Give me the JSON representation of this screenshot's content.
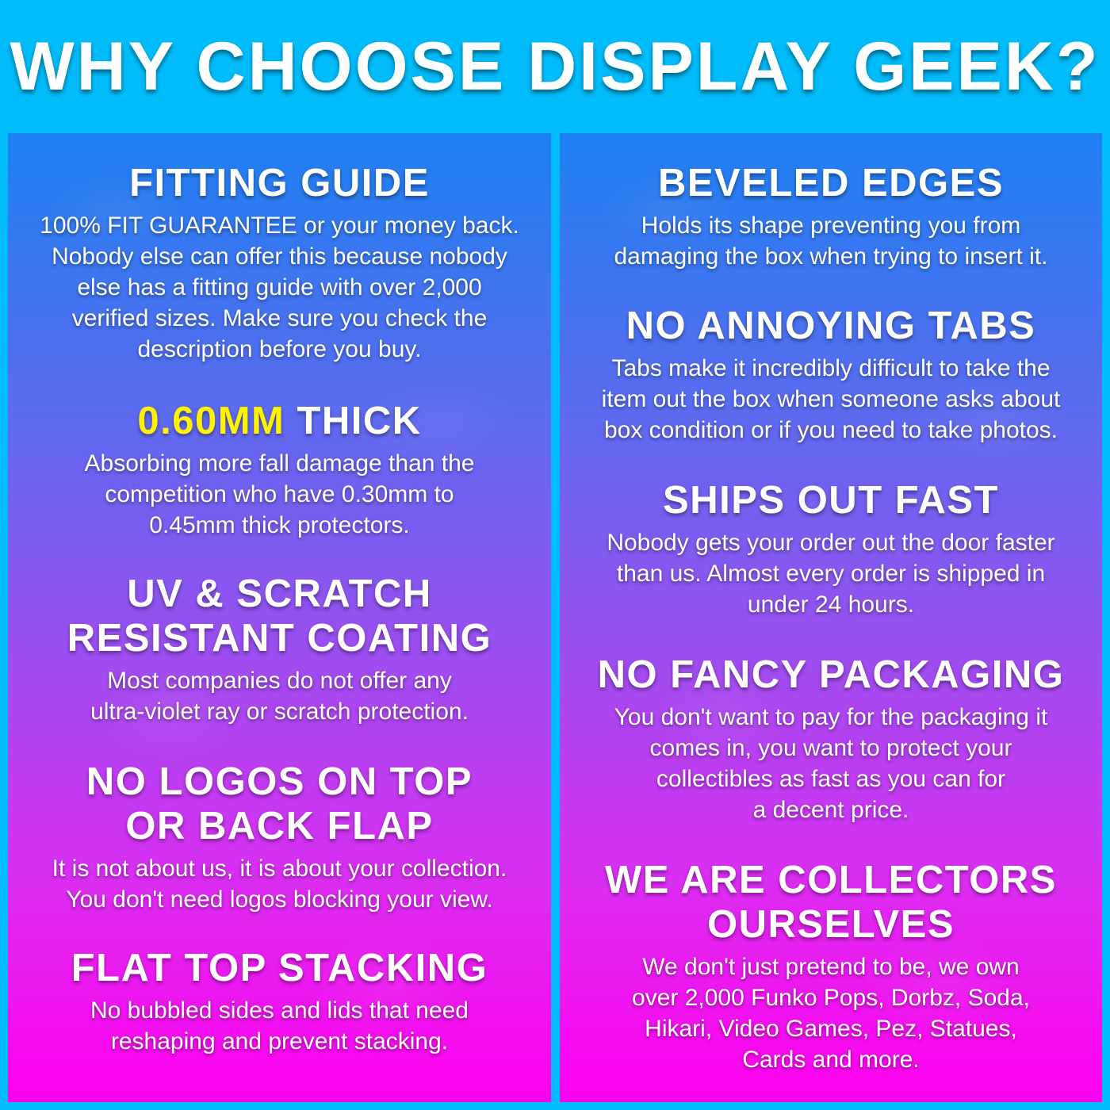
{
  "title": "WHY CHOOSE DISPLAY GEEK?",
  "colors": {
    "background": "#00bcfb",
    "gradient_top": "#1d80f2",
    "gradient_bottom": "#ff00ee",
    "highlight": "#fff200"
  },
  "left": [
    {
      "heading": [
        "FITTING GUIDE"
      ],
      "body": [
        "100% FIT GUARANTEE or your money back.",
        "Nobody else can offer this because nobody",
        "else has a fitting guide with over 2,000",
        "verified sizes. Make sure you check the",
        "description before you buy."
      ]
    },
    {
      "heading_highlight": "0.60MM",
      "heading": [
        " THICK"
      ],
      "body": [
        "Absorbing more fall damage than the",
        "competition who have 0.30mm to",
        "0.45mm thick protectors."
      ]
    },
    {
      "heading": [
        "UV & SCRATCH",
        "RESISTANT COATING"
      ],
      "body": [
        "Most companies do not offer any",
        "ultra-violet ray or scratch protection."
      ]
    },
    {
      "heading": [
        "NO LOGOS ON TOP",
        "OR BACK FLAP"
      ],
      "body": [
        "It is not about us, it is about your collection.",
        "You don't need logos blocking your view."
      ]
    },
    {
      "heading": [
        "FLAT TOP STACKING"
      ],
      "body": [
        "No bubbled sides and lids that need",
        "reshaping and prevent stacking."
      ]
    }
  ],
  "right": [
    {
      "heading": [
        "BEVELED EDGES"
      ],
      "body": [
        "Holds its shape preventing you from",
        "damaging the box when trying to insert it."
      ]
    },
    {
      "heading": [
        "NO ANNOYING TABS"
      ],
      "body": [
        "Tabs make it incredibly difficult to take the",
        "item out the box when someone asks about",
        "box condition or if you need to take photos."
      ]
    },
    {
      "heading": [
        "SHIPS OUT FAST"
      ],
      "body": [
        "Nobody gets your order out the door faster",
        "than us. Almost every order is shipped in",
        "under 24 hours."
      ]
    },
    {
      "heading": [
        "NO FANCY PACKAGING"
      ],
      "body": [
        "You don't want to pay for the packaging it",
        "comes in, you want to protect your",
        "collectibles as fast as you can for",
        "a decent price."
      ]
    },
    {
      "heading": [
        "WE ARE COLLECTORS",
        "OURSELVES"
      ],
      "body": [
        "We don't just pretend to be, we own",
        "over 2,000 Funko Pops, Dorbz, Soda,",
        "Hikari, Video Games, Pez, Statues,",
        "Cards and more."
      ]
    }
  ]
}
